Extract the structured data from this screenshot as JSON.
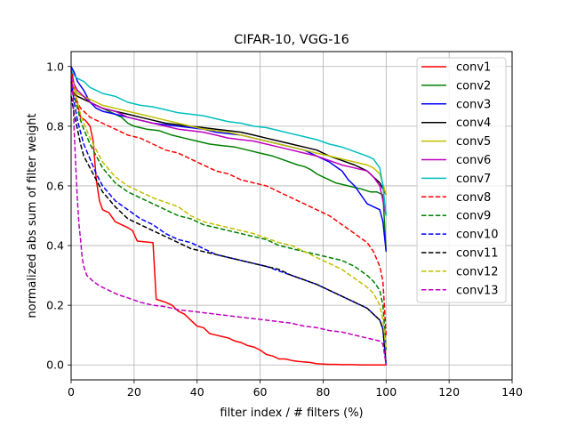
{
  "chart_data": {
    "type": "line",
    "title": "CIFAR-10, VGG-16",
    "xlabel": "filter index / # filters (%)",
    "ylabel": "normalized abs sum of filter weight",
    "xlim": [
      0,
      140
    ],
    "ylim": [
      -0.05,
      1.05
    ],
    "xticks": [
      0,
      20,
      40,
      60,
      80,
      100,
      120,
      140
    ],
    "yticks": [
      0.0,
      0.2,
      0.4,
      0.6,
      0.8,
      1.0
    ],
    "xtick_labels": [
      "0",
      "20",
      "40",
      "60",
      "80",
      "100",
      "120",
      "140"
    ],
    "ytick_labels": [
      "0.0",
      "0.2",
      "0.4",
      "0.6",
      "0.8",
      "1.0"
    ],
    "grid": true,
    "legend_position": "top-right",
    "series": [
      {
        "name": "conv1",
        "color": "#ff0000",
        "dash": "solid",
        "x": [
          0,
          1.5,
          3,
          4.5,
          6,
          7,
          8,
          9,
          10,
          12,
          14,
          16,
          18,
          19.5,
          21,
          26,
          27,
          30,
          32,
          34,
          36,
          38,
          40,
          42,
          44,
          46,
          48,
          50,
          52,
          54,
          56,
          58,
          60,
          62,
          64,
          66,
          68,
          70,
          72,
          74,
          76,
          78,
          80,
          82,
          84,
          86,
          88,
          90,
          92,
          94,
          96,
          98,
          99.5,
          100
        ],
        "y": [
          1.0,
          0.9,
          0.83,
          0.82,
          0.8,
          0.75,
          0.62,
          0.55,
          0.52,
          0.51,
          0.48,
          0.47,
          0.46,
          0.45,
          0.415,
          0.41,
          0.22,
          0.21,
          0.2,
          0.18,
          0.17,
          0.15,
          0.13,
          0.125,
          0.105,
          0.1,
          0.095,
          0.09,
          0.08,
          0.075,
          0.065,
          0.06,
          0.05,
          0.035,
          0.03,
          0.02,
          0.02,
          0.015,
          0.012,
          0.01,
          0.008,
          0.004,
          0.003,
          0.002,
          0.002,
          0.001,
          0.001,
          0.001,
          0.0,
          0.0,
          0.0,
          0.0,
          0.0,
          0.0
        ]
      },
      {
        "name": "conv2",
        "color": "#008000",
        "dash": "solid",
        "x": [
          0,
          1,
          2,
          4,
          6,
          8,
          10,
          12,
          14,
          16,
          18,
          20,
          24,
          28,
          32,
          36,
          40,
          44,
          48,
          52,
          56,
          60,
          64,
          68,
          72,
          74,
          76,
          78,
          80,
          84,
          88,
          92,
          95,
          97,
          99,
          100
        ],
        "y": [
          0.97,
          0.93,
          0.91,
          0.9,
          0.88,
          0.87,
          0.86,
          0.85,
          0.84,
          0.83,
          0.81,
          0.8,
          0.79,
          0.785,
          0.77,
          0.76,
          0.75,
          0.74,
          0.735,
          0.73,
          0.72,
          0.71,
          0.7,
          0.685,
          0.67,
          0.665,
          0.655,
          0.64,
          0.63,
          0.61,
          0.6,
          0.59,
          0.58,
          0.58,
          0.57,
          0.38
        ]
      },
      {
        "name": "conv3",
        "color": "#0000ff",
        "dash": "solid",
        "x": [
          0,
          1,
          2,
          4,
          6,
          8,
          10,
          14,
          18,
          22,
          26,
          30,
          34,
          38,
          42,
          46,
          50,
          54,
          58,
          62,
          66,
          70,
          74,
          78,
          82,
          86,
          88,
          90,
          92,
          94,
          96,
          98,
          99,
          100
        ],
        "y": [
          1.0,
          0.98,
          0.95,
          0.92,
          0.88,
          0.86,
          0.85,
          0.84,
          0.83,
          0.82,
          0.81,
          0.805,
          0.8,
          0.795,
          0.79,
          0.78,
          0.775,
          0.77,
          0.76,
          0.75,
          0.74,
          0.73,
          0.72,
          0.7,
          0.68,
          0.65,
          0.62,
          0.6,
          0.57,
          0.54,
          0.53,
          0.52,
          0.48,
          0.38
        ]
      },
      {
        "name": "conv4",
        "color": "#000000",
        "dash": "solid",
        "x": [
          0,
          1,
          2,
          4,
          6,
          8,
          10,
          14,
          18,
          22,
          26,
          30,
          34,
          38,
          42,
          46,
          50,
          54,
          58,
          62,
          66,
          70,
          74,
          78,
          82,
          86,
          90,
          92,
          94,
          96,
          98,
          100
        ],
        "y": [
          0.92,
          0.91,
          0.9,
          0.89,
          0.88,
          0.87,
          0.86,
          0.85,
          0.84,
          0.83,
          0.82,
          0.81,
          0.805,
          0.8,
          0.795,
          0.79,
          0.785,
          0.78,
          0.77,
          0.76,
          0.75,
          0.74,
          0.73,
          0.72,
          0.7,
          0.685,
          0.67,
          0.66,
          0.65,
          0.63,
          0.61,
          0.57
        ]
      },
      {
        "name": "conv5",
        "color": "#bfbf00",
        "dash": "solid",
        "x": [
          0,
          1,
          2,
          4,
          6,
          8,
          10,
          14,
          18,
          22,
          26,
          30,
          34,
          38,
          42,
          46,
          50,
          54,
          58,
          62,
          66,
          70,
          74,
          78,
          82,
          86,
          90,
          94,
          96,
          98,
          100
        ],
        "y": [
          0.96,
          0.93,
          0.91,
          0.9,
          0.89,
          0.88,
          0.87,
          0.86,
          0.85,
          0.84,
          0.83,
          0.82,
          0.81,
          0.8,
          0.79,
          0.785,
          0.78,
          0.77,
          0.76,
          0.75,
          0.74,
          0.73,
          0.72,
          0.71,
          0.7,
          0.69,
          0.68,
          0.67,
          0.66,
          0.64,
          0.57
        ]
      },
      {
        "name": "conv6",
        "color": "#bf00bf",
        "dash": "solid",
        "x": [
          0,
          1,
          2,
          4,
          6,
          8,
          10,
          14,
          18,
          22,
          26,
          30,
          34,
          38,
          42,
          46,
          50,
          54,
          58,
          62,
          66,
          70,
          74,
          78,
          82,
          86,
          90,
          94,
          96,
          98,
          100
        ],
        "y": [
          0.97,
          0.94,
          0.92,
          0.9,
          0.88,
          0.87,
          0.86,
          0.85,
          0.83,
          0.82,
          0.81,
          0.8,
          0.79,
          0.785,
          0.78,
          0.77,
          0.76,
          0.755,
          0.75,
          0.74,
          0.73,
          0.72,
          0.71,
          0.7,
          0.685,
          0.67,
          0.66,
          0.65,
          0.63,
          0.6,
          0.5
        ]
      },
      {
        "name": "conv7",
        "color": "#00bfbf",
        "dash": "solid",
        "x": [
          0,
          1,
          2,
          4,
          6,
          8,
          10,
          14,
          18,
          22,
          26,
          30,
          34,
          38,
          42,
          46,
          50,
          54,
          58,
          62,
          66,
          70,
          74,
          78,
          82,
          86,
          90,
          94,
          96,
          98,
          99,
          100
        ],
        "y": [
          0.99,
          0.97,
          0.96,
          0.95,
          0.93,
          0.92,
          0.91,
          0.9,
          0.88,
          0.87,
          0.865,
          0.855,
          0.845,
          0.84,
          0.835,
          0.825,
          0.815,
          0.81,
          0.8,
          0.795,
          0.785,
          0.775,
          0.765,
          0.755,
          0.74,
          0.73,
          0.715,
          0.7,
          0.69,
          0.66,
          0.6,
          0.5
        ]
      },
      {
        "name": "conv8",
        "color": "#ff0000",
        "dash": "dashed",
        "x": [
          0,
          1,
          2,
          3,
          4,
          6,
          8,
          10,
          14,
          18,
          22,
          26,
          30,
          34,
          38,
          42,
          46,
          50,
          54,
          58,
          62,
          66,
          70,
          74,
          78,
          82,
          86,
          90,
          94,
          96,
          98,
          99,
          100
        ],
        "y": [
          0.96,
          0.92,
          0.88,
          0.86,
          0.85,
          0.83,
          0.82,
          0.81,
          0.79,
          0.77,
          0.76,
          0.74,
          0.72,
          0.71,
          0.69,
          0.67,
          0.65,
          0.64,
          0.62,
          0.61,
          0.6,
          0.58,
          0.56,
          0.54,
          0.52,
          0.5,
          0.47,
          0.44,
          0.41,
          0.38,
          0.33,
          0.28,
          0.1
        ]
      },
      {
        "name": "conv9",
        "color": "#008000",
        "dash": "dashed",
        "x": [
          0,
          1,
          2,
          3,
          4,
          6,
          8,
          10,
          14,
          18,
          22,
          26,
          30,
          34,
          38,
          42,
          46,
          50,
          54,
          58,
          62,
          66,
          70,
          74,
          78,
          82,
          86,
          90,
          94,
          96,
          98,
          99,
          100
        ],
        "y": [
          0.94,
          0.9,
          0.86,
          0.82,
          0.79,
          0.74,
          0.7,
          0.66,
          0.61,
          0.58,
          0.56,
          0.54,
          0.52,
          0.5,
          0.49,
          0.47,
          0.46,
          0.45,
          0.44,
          0.43,
          0.42,
          0.4,
          0.39,
          0.38,
          0.37,
          0.36,
          0.35,
          0.33,
          0.3,
          0.28,
          0.25,
          0.2,
          0.05
        ]
      },
      {
        "name": "conv10",
        "color": "#0000ff",
        "dash": "dashed",
        "x": [
          0,
          1,
          2,
          3,
          4,
          6,
          8,
          10,
          14,
          18,
          22,
          26,
          30,
          34,
          38,
          42,
          46,
          50,
          54,
          58,
          62,
          66,
          70,
          74,
          78,
          82,
          86,
          90,
          94,
          96,
          98,
          99,
          100
        ],
        "y": [
          0.95,
          0.88,
          0.82,
          0.78,
          0.74,
          0.69,
          0.64,
          0.6,
          0.55,
          0.52,
          0.49,
          0.47,
          0.44,
          0.42,
          0.41,
          0.39,
          0.37,
          0.36,
          0.35,
          0.34,
          0.33,
          0.315,
          0.3,
          0.285,
          0.27,
          0.25,
          0.23,
          0.21,
          0.19,
          0.17,
          0.15,
          0.12,
          0.0
        ]
      },
      {
        "name": "conv11",
        "color": "#000000",
        "dash": "dashed",
        "x": [
          0,
          1,
          2,
          3,
          4,
          6,
          8,
          10,
          14,
          18,
          22,
          26,
          30,
          34,
          38,
          42,
          46,
          50,
          54,
          58,
          62,
          66,
          70,
          74,
          78,
          82,
          86,
          90,
          94,
          96,
          98,
          99,
          100
        ],
        "y": [
          0.9,
          0.84,
          0.79,
          0.74,
          0.7,
          0.66,
          0.62,
          0.58,
          0.53,
          0.49,
          0.47,
          0.45,
          0.43,
          0.41,
          0.39,
          0.38,
          0.37,
          0.36,
          0.35,
          0.34,
          0.33,
          0.32,
          0.3,
          0.285,
          0.27,
          0.25,
          0.23,
          0.21,
          0.19,
          0.17,
          0.15,
          0.12,
          0.0
        ]
      },
      {
        "name": "conv12",
        "color": "#bfbf00",
        "dash": "dashed",
        "x": [
          0,
          1,
          2,
          3,
          4,
          6,
          8,
          10,
          14,
          18,
          22,
          26,
          30,
          34,
          38,
          42,
          46,
          50,
          54,
          58,
          62,
          66,
          70,
          74,
          78,
          82,
          86,
          90,
          94,
          96,
          98,
          99,
          100
        ],
        "y": [
          0.97,
          0.93,
          0.88,
          0.84,
          0.81,
          0.76,
          0.72,
          0.68,
          0.63,
          0.6,
          0.58,
          0.56,
          0.545,
          0.53,
          0.5,
          0.48,
          0.47,
          0.46,
          0.45,
          0.44,
          0.425,
          0.41,
          0.4,
          0.38,
          0.36,
          0.34,
          0.32,
          0.29,
          0.26,
          0.24,
          0.2,
          0.15,
          0.05
        ]
      },
      {
        "name": "conv13",
        "color": "#bf00bf",
        "dash": "dashed",
        "x": [
          0,
          0.5,
          1,
          1.5,
          2,
          2.5,
          3,
          3.5,
          4,
          5,
          7,
          9,
          12,
          15,
          18,
          22,
          26,
          30,
          34,
          38,
          42,
          46,
          50,
          54,
          58,
          62,
          66,
          70,
          74,
          78,
          82,
          86,
          90,
          94,
          96,
          98,
          99,
          100
        ],
        "y": [
          0.99,
          0.92,
          0.78,
          0.66,
          0.55,
          0.47,
          0.42,
          0.36,
          0.33,
          0.3,
          0.28,
          0.265,
          0.25,
          0.235,
          0.225,
          0.21,
          0.2,
          0.195,
          0.185,
          0.18,
          0.175,
          0.17,
          0.165,
          0.16,
          0.155,
          0.15,
          0.145,
          0.14,
          0.13,
          0.125,
          0.115,
          0.11,
          0.1,
          0.09,
          0.085,
          0.08,
          0.07,
          0.0
        ]
      }
    ]
  }
}
